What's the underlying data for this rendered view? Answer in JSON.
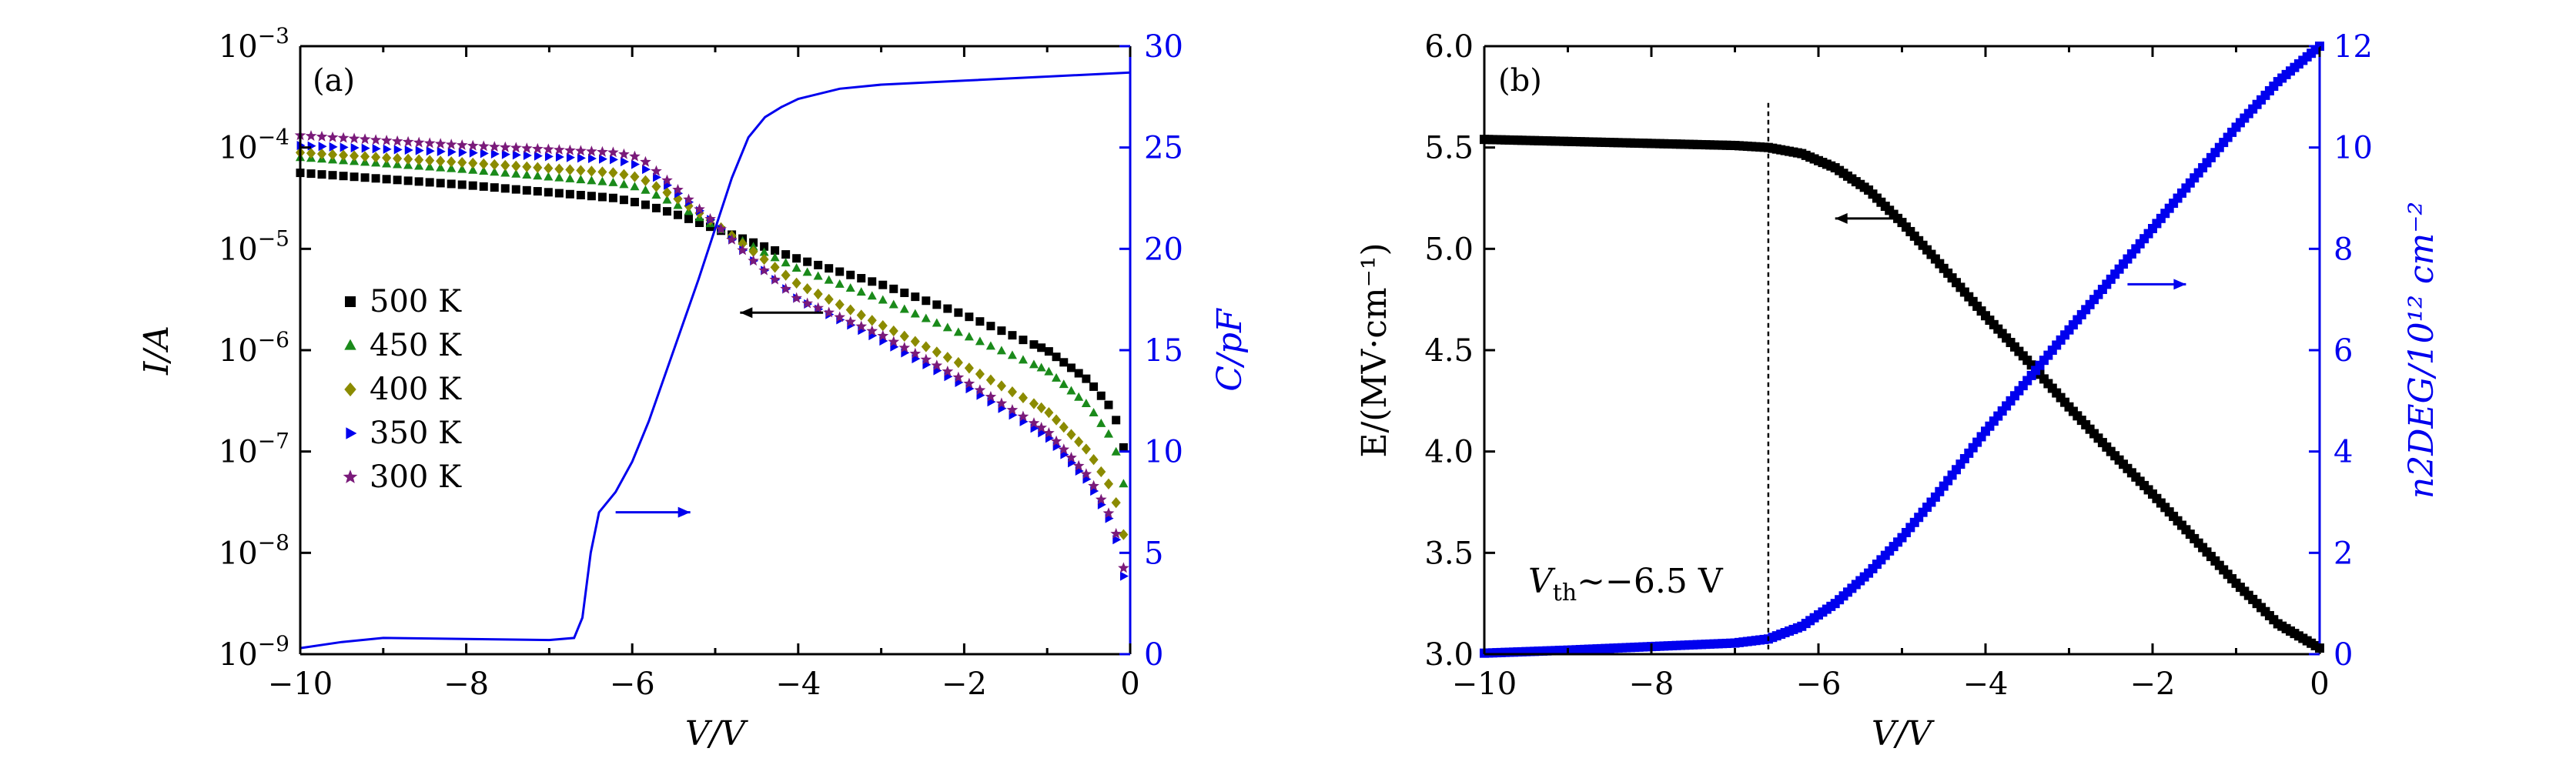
{
  "chart_data": [
    {
      "panel_label": "(a)",
      "type": "scatter",
      "xlabel": "V/V",
      "ylabel_left": "I/A",
      "ylabel_right": "C/pF",
      "xlim": [
        -10,
        0
      ],
      "ylim_left_log10": [
        -9,
        -3
      ],
      "ylim_right": [
        0,
        30
      ],
      "x_ticks": [
        "−10",
        "−8",
        "−6",
        "−4",
        "−2",
        "0"
      ],
      "y_left_ticks": [
        {
          "base": "10",
          "exp": "−9",
          "v": -9
        },
        {
          "base": "10",
          "exp": "−8",
          "v": -8
        },
        {
          "base": "10",
          "exp": "−7",
          "v": -7
        },
        {
          "base": "10",
          "exp": "−6",
          "v": -6
        },
        {
          "base": "10",
          "exp": "−5",
          "v": -5
        },
        {
          "base": "10",
          "exp": "−4",
          "v": -4
        },
        {
          "base": "10",
          "exp": "−3",
          "v": -3
        }
      ],
      "y_right_ticks": [
        "0",
        "5",
        "10",
        "15",
        "20",
        "25",
        "30"
      ],
      "series": [
        {
          "name": "500 K",
          "marker": "square",
          "color": "#000000",
          "x": [
            -10,
            -8,
            -6.2,
            -5.9,
            -5.5,
            -5,
            -4.5,
            -4,
            -3,
            -2,
            -1,
            -0.5,
            -0.2,
            0
          ],
          "log10y": [
            -4.25,
            -4.37,
            -4.5,
            -4.55,
            -4.65,
            -4.8,
            -4.95,
            -5.1,
            -5.35,
            -5.65,
            -6.0,
            -6.3,
            -6.6,
            -7.2
          ]
        },
        {
          "name": "450 K",
          "marker": "triangle",
          "color": "#1a8a1a",
          "x": [
            -10,
            -8,
            -6.2,
            -5.9,
            -5.5,
            -5,
            -4.5,
            -4,
            -3,
            -2,
            -1,
            -0.5,
            -0.2,
            0
          ],
          "log10y": [
            -4.1,
            -4.22,
            -4.35,
            -4.4,
            -4.55,
            -4.78,
            -5.0,
            -5.2,
            -5.5,
            -5.85,
            -6.2,
            -6.55,
            -6.9,
            -7.6
          ]
        },
        {
          "name": "400 K",
          "marker": "diamond",
          "color": "#8b8b00",
          "x": [
            -10,
            -8,
            -6.2,
            -5.9,
            -5.5,
            -5,
            -4.5,
            -4,
            -3,
            -2,
            -1,
            -0.5,
            -0.2,
            0
          ],
          "log10y": [
            -4.05,
            -4.15,
            -4.25,
            -4.3,
            -4.48,
            -4.75,
            -5.05,
            -5.35,
            -5.75,
            -6.15,
            -6.6,
            -7.0,
            -7.4,
            -8.1
          ]
        },
        {
          "name": "350 K",
          "marker": "triangle-right",
          "color": "#0000ee",
          "x": [
            -10,
            -8,
            -6.2,
            -5.9,
            -5.5,
            -5,
            -4.5,
            -4,
            -3,
            -2,
            -1,
            -0.5,
            -0.2,
            0
          ],
          "log10y": [
            -3.98,
            -4.05,
            -4.12,
            -4.18,
            -4.42,
            -4.75,
            -5.15,
            -5.5,
            -5.9,
            -6.35,
            -6.85,
            -7.3,
            -7.75,
            -8.55
          ]
        },
        {
          "name": "300 K",
          "marker": "star",
          "color": "#7a1a7a",
          "x": [
            -10,
            -8,
            -6.2,
            -5.9,
            -5.5,
            -5,
            -4.5,
            -4,
            -3,
            -2,
            -1,
            -0.5,
            -0.2,
            0
          ],
          "log10y": [
            -3.88,
            -3.98,
            -4.05,
            -4.1,
            -4.38,
            -4.75,
            -5.15,
            -5.5,
            -5.85,
            -6.3,
            -6.8,
            -7.25,
            -7.7,
            -8.45
          ]
        }
      ],
      "capacitance": {
        "name": "C",
        "color": "#0000ee",
        "x": [
          -10,
          -9.5,
          -9,
          -8,
          -7,
          -6.7,
          -6.6,
          -6.5,
          -6.4,
          -6.2,
          -6.0,
          -5.8,
          -5.5,
          -5.2,
          -5.0,
          -4.8,
          -4.6,
          -4.4,
          -4.2,
          -4.0,
          -3.5,
          -3.0,
          -2.0,
          -1.0,
          0
        ],
        "y": [
          0.3,
          0.6,
          0.8,
          0.75,
          0.7,
          0.8,
          1.8,
          5.0,
          7.0,
          8.0,
          9.5,
          11.5,
          15.0,
          18.5,
          21.0,
          23.5,
          25.5,
          26.5,
          27.0,
          27.4,
          27.9,
          28.1,
          28.3,
          28.5,
          28.7
        ]
      },
      "arrows": [
        {
          "direction": "left",
          "points_to_axis": "left",
          "x": [
            -3.7,
            -4.7
          ],
          "log10y": [
            -5.63,
            -5.63
          ]
        },
        {
          "direction": "right",
          "points_to_axis": "right",
          "x": [
            -6.2,
            -5.3
          ],
          "y_right": [
            7.0,
            7.0
          ]
        }
      ]
    },
    {
      "panel_label": "(b)",
      "type": "scatter",
      "xlabel": "V/V",
      "ylabel_left": "E/(MV·cm⁻¹)",
      "ylabel_right": "n2DEG/10¹² cm⁻²",
      "xlim": [
        -10,
        0
      ],
      "ylim_left": [
        3.0,
        6.0
      ],
      "ylim_right": [
        0,
        12
      ],
      "x_ticks": [
        "−10",
        "−8",
        "−6",
        "−4",
        "−2",
        "0"
      ],
      "y_left_ticks": [
        "3.0",
        "3.5",
        "4.0",
        "4.5",
        "5.0",
        "5.5",
        "6.0"
      ],
      "y_right_ticks": [
        "0",
        "2",
        "4",
        "6",
        "8",
        "10",
        "12"
      ],
      "series": [
        {
          "name": "E",
          "marker": "square",
          "color": "#000000",
          "axis": "left",
          "x": [
            -10,
            -9,
            -8,
            -7,
            -6.6,
            -6.2,
            -5.8,
            -5.4,
            -5.0,
            -4.6,
            -4.0,
            -3.5,
            -3.0,
            -2.5,
            -2.0,
            -1.5,
            -1.0,
            -0.5,
            0
          ],
          "y": [
            5.54,
            5.53,
            5.52,
            5.51,
            5.5,
            5.47,
            5.4,
            5.29,
            5.13,
            4.95,
            4.67,
            4.45,
            4.22,
            4.0,
            3.79,
            3.57,
            3.35,
            3.15,
            3.03
          ]
        },
        {
          "name": "n2DEG",
          "marker": "square",
          "color": "#0000ee",
          "axis": "right",
          "x": [
            -10,
            -9,
            -8,
            -7,
            -6.6,
            -6.2,
            -5.8,
            -5.4,
            -5.0,
            -4.6,
            -4.0,
            -3.5,
            -3.0,
            -2.5,
            -2.0,
            -1.5,
            -1.0,
            -0.5,
            0
          ],
          "y": [
            0.02,
            0.08,
            0.15,
            0.22,
            0.3,
            0.55,
            1.0,
            1.6,
            2.3,
            3.1,
            4.4,
            5.4,
            6.4,
            7.4,
            8.4,
            9.4,
            10.4,
            11.3,
            12.0
          ]
        }
      ],
      "vth_line_x": -6.6,
      "annotation": {
        "prefix": "V",
        "sub": "th",
        "text": "∼−6.5 V"
      },
      "arrows": [
        {
          "direction": "left",
          "points_to_axis": "left",
          "x": [
            -5.0,
            -5.8
          ],
          "y": [
            5.15,
            5.15
          ]
        },
        {
          "direction": "right",
          "points_to_axis": "right",
          "x": [
            -2.3,
            -1.6
          ],
          "y_right": [
            7.3,
            7.3
          ]
        }
      ]
    }
  ]
}
